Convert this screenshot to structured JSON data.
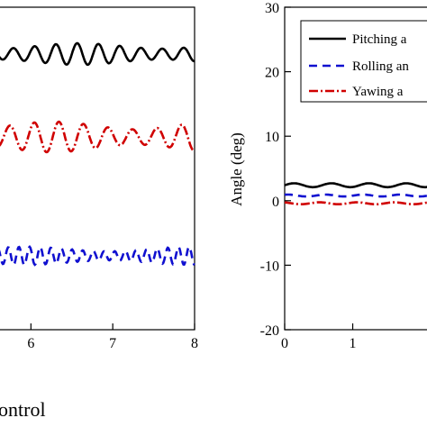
{
  "chart_data": [
    {
      "type": "line",
      "panel": "left",
      "xlabel": "",
      "ylabel": "",
      "xlim": [
        5.6,
        8
      ],
      "x_ticks": [
        "6",
        "7",
        "8"
      ],
      "series": [
        {
          "color": "#000000",
          "dash": "solid",
          "baseline": 60,
          "amplitude": 12,
          "period": 0.26
        },
        {
          "color": "#d00000",
          "dash": "dashdot",
          "baseline": 152,
          "amplitude": 17,
          "period": 0.3
        },
        {
          "color": "#1010d0",
          "dash": "dashed",
          "baseline": 284,
          "amplitude": 10,
          "period": 0.13
        }
      ]
    },
    {
      "type": "line",
      "panel": "right",
      "xlabel": "",
      "ylabel": "Angle (deg)",
      "ylim": [
        -20,
        30
      ],
      "y_ticks": [
        "30",
        "20",
        "10",
        "0",
        "-10",
        "-20"
      ],
      "x_ticks": [
        "0",
        "1"
      ],
      "xlim": [
        0,
        2.25
      ],
      "legend": {
        "position": "top-right",
        "entries": [
          "Pitching a",
          "Rolling an",
          "Yawing a"
        ]
      },
      "series": [
        {
          "name": "Pitching a",
          "color": "#000000",
          "dash": "solid",
          "mean": 2.4,
          "amplitude": 0.3
        },
        {
          "name": "Rolling an",
          "color": "#1010d0",
          "dash": "dashed",
          "mean": 0.8,
          "amplitude": 0.15
        },
        {
          "name": "Yawing a",
          "color": "#d00000",
          "dash": "dashdot",
          "mean": -0.4,
          "amplitude": 0.15
        }
      ]
    }
  ],
  "caption": "ontrol"
}
